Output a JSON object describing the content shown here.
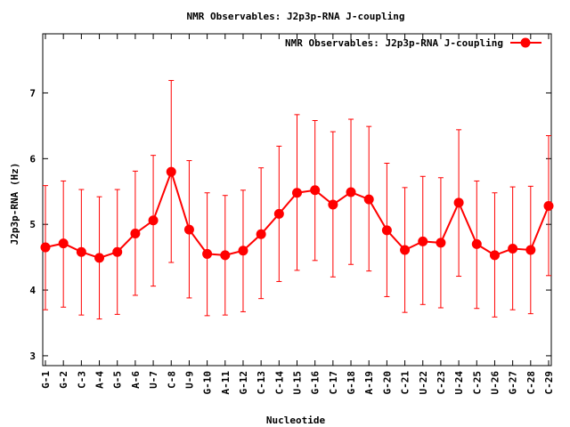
{
  "chart_data": {
    "type": "line",
    "title": "NMR Observables: J2p3p-RNA J-coupling",
    "xlabel": "Nucleotide",
    "ylabel": "J2p3p-RNA (Hz)",
    "ylim": [
      2.85,
      7.9
    ],
    "yticks": [
      3,
      4,
      5,
      6,
      7
    ],
    "grid": false,
    "legend_position": "top-right",
    "color": "#ff0000",
    "categories": [
      "G-1",
      "G-2",
      "C-3",
      "A-4",
      "G-5",
      "A-6",
      "U-7",
      "C-8",
      "U-9",
      "G-10",
      "A-11",
      "G-12",
      "C-13",
      "C-14",
      "U-15",
      "G-16",
      "C-17",
      "G-18",
      "A-19",
      "G-20",
      "C-21",
      "U-22",
      "C-23",
      "U-24",
      "C-25",
      "U-26",
      "G-27",
      "C-28",
      "C-29"
    ],
    "series": [
      {
        "name": "NMR Observables: J2p3p-RNA J-coupling",
        "values": [
          4.65,
          4.71,
          4.58,
          4.49,
          4.58,
          4.86,
          5.06,
          5.8,
          4.92,
          4.55,
          4.53,
          4.6,
          4.85,
          5.16,
          5.48,
          5.52,
          5.3,
          5.49,
          5.38,
          4.91,
          4.61,
          4.74,
          4.72,
          5.33,
          4.7,
          4.53,
          4.63,
          4.61,
          5.28
        ],
        "err_low": [
          3.7,
          3.74,
          3.62,
          3.56,
          3.63,
          3.92,
          4.06,
          4.42,
          3.88,
          3.61,
          3.62,
          3.67,
          3.87,
          4.13,
          4.3,
          4.45,
          4.2,
          4.39,
          4.29,
          3.9,
          3.66,
          3.78,
          3.73,
          4.21,
          3.72,
          3.59,
          3.7,
          3.64,
          4.22
        ],
        "err_high": [
          5.59,
          5.66,
          5.53,
          5.42,
          5.53,
          5.81,
          6.05,
          7.19,
          5.97,
          5.48,
          5.44,
          5.52,
          5.86,
          6.19,
          6.67,
          6.58,
          6.41,
          6.6,
          6.49,
          5.93,
          5.56,
          5.73,
          5.71,
          6.44,
          5.66,
          5.48,
          5.57,
          5.58,
          6.35
        ]
      }
    ]
  }
}
